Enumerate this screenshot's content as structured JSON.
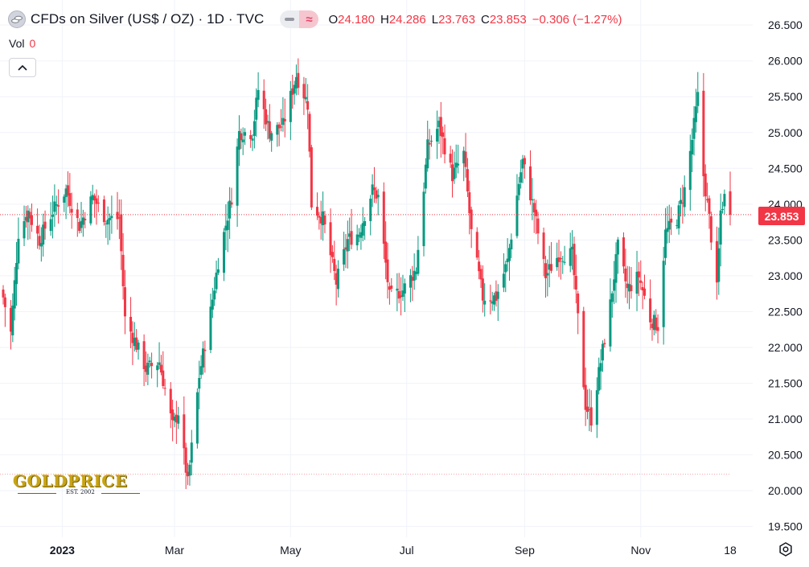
{
  "header": {
    "symbol_title": "CFDs on Silver (US$ / OZ) · 1D · TVC",
    "ohlc": [
      {
        "key": "O",
        "value": "24.180"
      },
      {
        "key": "H",
        "value": "24.286"
      },
      {
        "key": "L",
        "value": "23.763"
      },
      {
        "key": "C",
        "value": "23.853"
      },
      {
        "key": "",
        "value": "−0.306 (−1.27%)"
      }
    ]
  },
  "volume": {
    "label": "Vol",
    "value": "0"
  },
  "last_price_tag": "23.853",
  "logo": {
    "text": "GOLDPRICE",
    "tagline": "EST. 2002"
  },
  "colors": {
    "up": "#089981",
    "down": "#f23645",
    "grid": "#f0f3fa",
    "axis_text": "#131722"
  },
  "icons": {
    "symbol": "silver-coins-icon",
    "settings": "settings-icon",
    "collapse": "chevron-up-icon"
  },
  "chart_data": {
    "type": "candlestick",
    "title": "CFDs on Silver (US$ / OZ) · 1D · TVC",
    "y_ticks": [
      "19.500",
      "20.000",
      "20.500",
      "21.000",
      "21.500",
      "22.000",
      "22.500",
      "23.000",
      "23.500",
      "24.000",
      "24.500",
      "25.000",
      "25.500",
      "26.000",
      "26.500"
    ],
    "ylim": [
      19.35,
      26.85
    ],
    "x_ticks": [
      {
        "label": "2023",
        "date": "2023-01-01"
      },
      {
        "label": "Mar",
        "date": "2023-03-01"
      },
      {
        "label": "May",
        "date": "2023-05-01"
      },
      {
        "label": "Jul",
        "date": "2023-07-01"
      },
      {
        "label": "Sep",
        "date": "2023-09-01"
      },
      {
        "label": "Nov",
        "date": "2023-11-01"
      },
      {
        "label": "18",
        "date": "2023-12-18"
      }
    ],
    "xlim": [
      "2022-12-01",
      "2023-12-18"
    ],
    "last_price": 23.853,
    "reference_line": 20.23,
    "grid": true,
    "legend": "none",
    "anchor_closes": [
      [
        "2022-12-01",
        22.7
      ],
      [
        "2022-12-05",
        22.2
      ],
      [
        "2022-12-09",
        23.6
      ],
      [
        "2022-12-14",
        23.9
      ],
      [
        "2022-12-20",
        23.5
      ],
      [
        "2022-12-27",
        23.9
      ],
      [
        "2023-01-03",
        24.2
      ],
      [
        "2023-01-10",
        23.7
      ],
      [
        "2023-01-17",
        24.1
      ],
      [
        "2023-01-24",
        23.8
      ],
      [
        "2023-01-31",
        23.8
      ],
      [
        "2023-02-03",
        22.4
      ],
      [
        "2023-02-08",
        22.1
      ],
      [
        "2023-02-14",
        21.7
      ],
      [
        "2023-02-21",
        21.8
      ],
      [
        "2023-02-28",
        20.9
      ],
      [
        "2023-03-03",
        21.1
      ],
      [
        "2023-03-08",
        20.1
      ],
      [
        "2023-03-10",
        20.6
      ],
      [
        "2023-03-14",
        21.6
      ],
      [
        "2023-03-20",
        22.5
      ],
      [
        "2023-03-24",
        23.2
      ],
      [
        "2023-03-31",
        24.1
      ],
      [
        "2023-04-04",
        25.0
      ],
      [
        "2023-04-11",
        25.0
      ],
      [
        "2023-04-14",
        25.6
      ],
      [
        "2023-04-20",
        25.0
      ],
      [
        "2023-04-27",
        25.1
      ],
      [
        "2023-05-04",
        25.8
      ],
      [
        "2023-05-10",
        25.4
      ],
      [
        "2023-05-12",
        24.0
      ],
      [
        "2023-05-18",
        23.8
      ],
      [
        "2023-05-25",
        22.9
      ],
      [
        "2023-05-31",
        23.5
      ],
      [
        "2023-06-06",
        23.6
      ],
      [
        "2023-06-13",
        24.2
      ],
      [
        "2023-06-16",
        24.1
      ],
      [
        "2023-06-22",
        22.7
      ],
      [
        "2023-06-29",
        22.8
      ],
      [
        "2023-07-06",
        23.1
      ],
      [
        "2023-07-12",
        24.8
      ],
      [
        "2023-07-18",
        25.1
      ],
      [
        "2023-07-25",
        24.4
      ],
      [
        "2023-07-31",
        24.7
      ],
      [
        "2023-08-04",
        23.6
      ],
      [
        "2023-08-10",
        22.7
      ],
      [
        "2023-08-17",
        22.7
      ],
      [
        "2023-08-23",
        23.2
      ],
      [
        "2023-08-29",
        24.3
      ],
      [
        "2023-08-31",
        24.6
      ],
      [
        "2023-09-06",
        23.9
      ],
      [
        "2023-09-12",
        23.0
      ],
      [
        "2023-09-19",
        23.3
      ],
      [
        "2023-09-26",
        23.3
      ],
      [
        "2023-10-03",
        21.2
      ],
      [
        "2023-10-06",
        21.0
      ],
      [
        "2023-10-11",
        21.8
      ],
      [
        "2023-10-16",
        22.6
      ],
      [
        "2023-10-20",
        23.4
      ],
      [
        "2023-10-25",
        22.8
      ],
      [
        "2023-10-31",
        23.0
      ],
      [
        "2023-11-06",
        22.4
      ],
      [
        "2023-11-10",
        22.3
      ],
      [
        "2023-11-14",
        23.6
      ],
      [
        "2023-11-20",
        23.8
      ],
      [
        "2023-11-24",
        24.2
      ],
      [
        "2023-11-28",
        24.9
      ],
      [
        "2023-12-01",
        25.5
      ],
      [
        "2023-12-04",
        24.4
      ],
      [
        "2023-12-07",
        23.8
      ],
      [
        "2023-12-11",
        22.8
      ],
      [
        "2023-12-13",
        23.9
      ],
      [
        "2023-12-15",
        24.1
      ],
      [
        "2023-12-18",
        23.853
      ]
    ]
  }
}
